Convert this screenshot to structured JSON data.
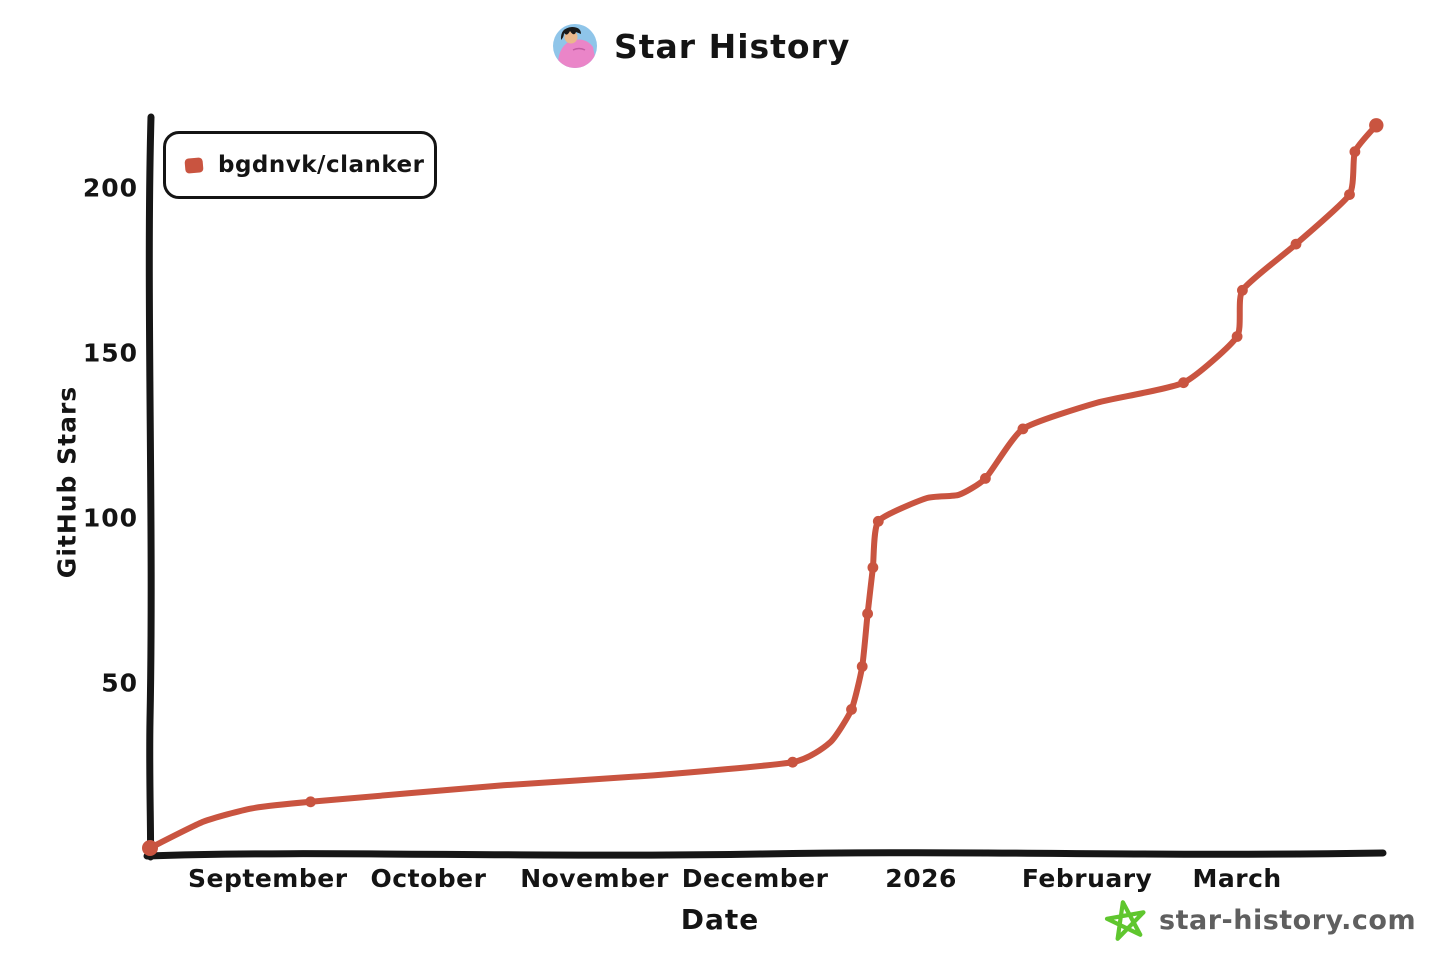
{
  "page": {
    "background": "#ffffff"
  },
  "header": {
    "title": "Star History",
    "avatar": "gohan-pink-jacket-avatar"
  },
  "legend": {
    "items": [
      {
        "label": "bgdnvk/clanker",
        "color": "#c95440"
      }
    ]
  },
  "chart_data": {
    "type": "line",
    "title": "Star History",
    "xlabel": "Date",
    "ylabel": "GitHub Stars",
    "grid": false,
    "legend_position": "top-left",
    "x_type": "time",
    "x_range": [
      "2025-08-10",
      "2026-03-31"
    ],
    "ylim": [
      0,
      220
    ],
    "y_ticks": [
      50,
      100,
      150,
      200
    ],
    "x_ticks": [
      {
        "date": "2025-09-01",
        "label": "September"
      },
      {
        "date": "2025-10-01",
        "label": "October"
      },
      {
        "date": "2025-11-01",
        "label": "November"
      },
      {
        "date": "2025-12-01",
        "label": "December"
      },
      {
        "date": "2026-01-01",
        "label": "2026"
      },
      {
        "date": "2026-02-01",
        "label": "February"
      },
      {
        "date": "2026-03-01",
        "label": "March"
      }
    ],
    "series": [
      {
        "name": "bgdnvk/clanker",
        "color": "#c95440",
        "line_width": 6,
        "points": [
          {
            "date": "2025-08-10",
            "stars": 0,
            "marker": true
          },
          {
            "date": "2025-08-20",
            "stars": 8,
            "marker": false
          },
          {
            "date": "2025-08-29",
            "stars": 12,
            "marker": false
          },
          {
            "date": "2025-09-09",
            "stars": 14,
            "marker": true
          },
          {
            "date": "2025-10-15",
            "stars": 19,
            "marker": false
          },
          {
            "date": "2025-11-12",
            "stars": 22,
            "marker": false
          },
          {
            "date": "2025-12-08",
            "stars": 26,
            "marker": true
          },
          {
            "date": "2025-12-15",
            "stars": 32,
            "marker": false
          },
          {
            "date": "2025-12-19",
            "stars": 42,
            "marker": true
          },
          {
            "date": "2025-12-21",
            "stars": 55,
            "marker": true
          },
          {
            "date": "2025-12-22",
            "stars": 71,
            "marker": true
          },
          {
            "date": "2025-12-23",
            "stars": 85,
            "marker": true
          },
          {
            "date": "2025-12-24",
            "stars": 99,
            "marker": true
          },
          {
            "date": "2026-01-02",
            "stars": 106,
            "marker": false
          },
          {
            "date": "2026-01-08",
            "stars": 107,
            "marker": false
          },
          {
            "date": "2026-01-13",
            "stars": 112,
            "marker": true
          },
          {
            "date": "2026-01-20",
            "stars": 127,
            "marker": true
          },
          {
            "date": "2026-02-03",
            "stars": 135,
            "marker": false
          },
          {
            "date": "2026-02-19",
            "stars": 141,
            "marker": true
          },
          {
            "date": "2026-03-01",
            "stars": 155,
            "marker": true
          },
          {
            "date": "2026-03-02",
            "stars": 169,
            "marker": true
          },
          {
            "date": "2026-03-12",
            "stars": 183,
            "marker": true
          },
          {
            "date": "2026-03-22",
            "stars": 198,
            "marker": true
          },
          {
            "date": "2026-03-23",
            "stars": 211,
            "marker": true
          },
          {
            "date": "2026-03-27",
            "stars": 219,
            "marker": true
          }
        ]
      }
    ]
  },
  "footer": {
    "brand": "star-history.com",
    "star_icon_color": "#5fc62e",
    "text_color": "#5f5f5f"
  }
}
